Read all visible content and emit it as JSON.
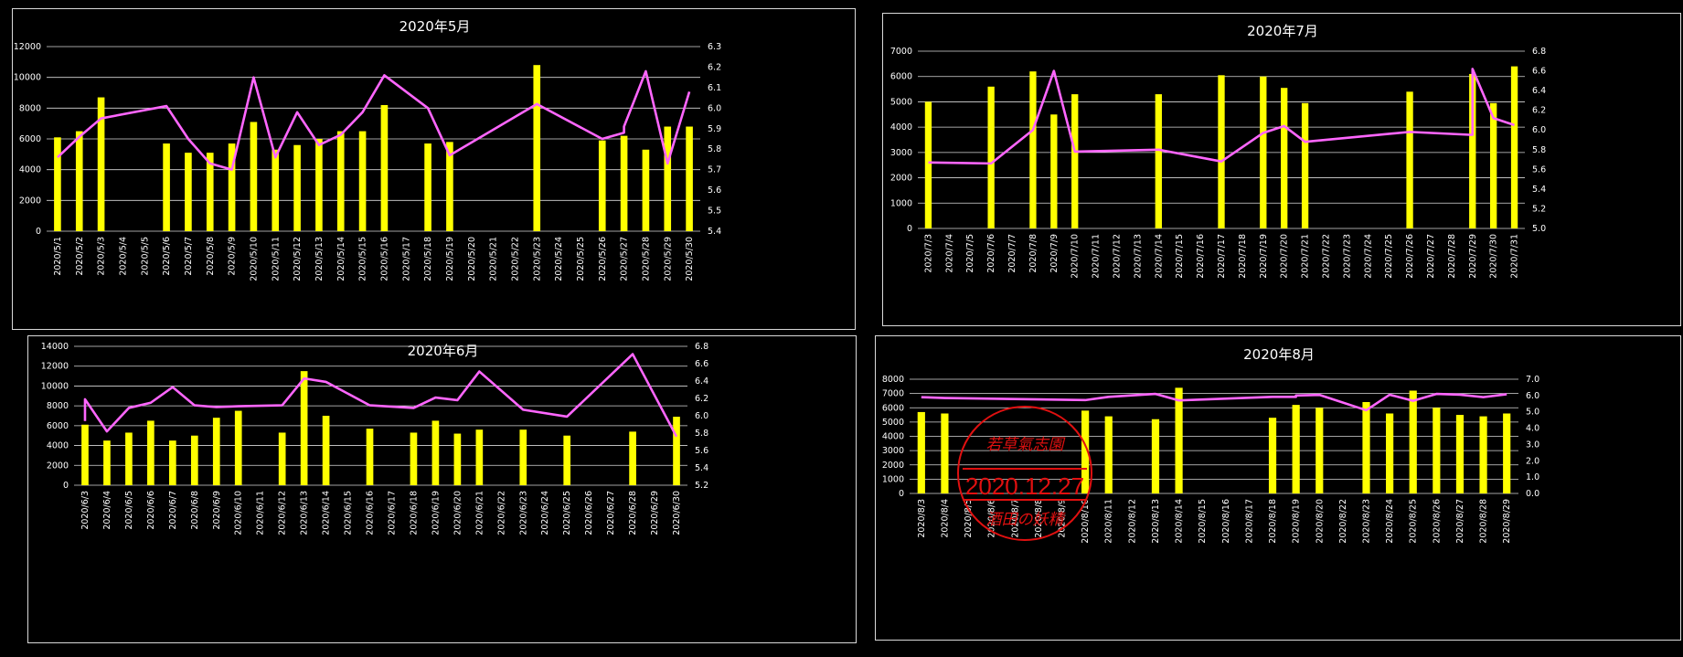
{
  "chart_data": [
    {
      "id": "may",
      "type": "bar+line",
      "title": "2020年5月",
      "categories": [
        "2020/5/1",
        "2020/5/2",
        "2020/5/3",
        "2020/5/4",
        "2020/5/5",
        "2020/5/6",
        "2020/5/7",
        "2020/5/8",
        "2020/5/9",
        "2020/5/10",
        "2020/5/11",
        "2020/5/12",
        "2020/5/13",
        "2020/5/14",
        "2020/5/15",
        "2020/5/16",
        "2020/5/17",
        "2020/5/18",
        "2020/5/19",
        "2020/5/20",
        "2020/5/21",
        "2020/5/22",
        "2020/5/23",
        "2020/5/24",
        "2020/5/25",
        "2020/5/26",
        "2020/5/27",
        "2020/5/28",
        "2020/5/29",
        "2020/5/30"
      ],
      "bars": [
        6100,
        6500,
        8700,
        null,
        null,
        5700,
        5100,
        5100,
        5700,
        7100,
        5300,
        5600,
        6000,
        6500,
        6500,
        8200,
        null,
        5700,
        5800,
        null,
        null,
        null,
        10800,
        null,
        null,
        5900,
        6200,
        5300,
        6800,
        6800
      ],
      "line": [
        5.76,
        5.86,
        5.95,
        null,
        null,
        6.01,
        5.85,
        5.73,
        5.7,
        6.15,
        5.76,
        5.98,
        5.82,
        5.87,
        5.98,
        6.16,
        null,
        6.0,
        5.77,
        null,
        null,
        null,
        6.02,
        null,
        null,
        5.85,
        [
          5.88,
          5.91
        ],
        6.18,
        5.73,
        6.08
      ],
      "yleft": {
        "min": 0,
        "max": 12000,
        "ticks": [
          "0",
          "2000",
          "4000",
          "6000",
          "8000",
          "10000",
          "12000"
        ]
      },
      "yright": {
        "min": 5.4,
        "max": 6.3,
        "ticks": [
          "5.4",
          "5.5",
          "5.6",
          "5.7",
          "5.8",
          "5.9",
          "6.0",
          "6.1",
          "6.2",
          "6.3"
        ]
      },
      "grid": true
    },
    {
      "id": "jul",
      "type": "bar+line",
      "title": "2020年7月",
      "categories": [
        "2020/7/3",
        "2020/7/4",
        "2020/7/5",
        "2020/7/6",
        "2020/7/7",
        "2020/7/8",
        "2020/7/9",
        "2020/7/10",
        "2020/7/11",
        "2020/7/12",
        "2020/7/13",
        "2020/7/14",
        "2020/7/15",
        "2020/7/16",
        "2020/7/17",
        "2020/7/18",
        "2020/7/19",
        "2020/7/20",
        "2020/7/21",
        "2020/7/22",
        "2020/7/23",
        "2020/7/24",
        "2020/7/25",
        "2020/7/26",
        "2020/7/27",
        "2020/7/28",
        "2020/7/29",
        "2020/7/30",
        "2020/7/31"
      ],
      "bars": [
        5000,
        null,
        null,
        5600,
        null,
        6200,
        4500,
        5300,
        null,
        null,
        null,
        5300,
        null,
        null,
        6050,
        null,
        6000,
        5550,
        4950,
        null,
        null,
        null,
        null,
        5400,
        null,
        null,
        6100,
        4950,
        6400
      ],
      "line": [
        5.67,
        null,
        null,
        5.66,
        null,
        6.0,
        6.6,
        5.78,
        null,
        null,
        null,
        5.8,
        null,
        null,
        5.68,
        null,
        5.97,
        [
          6.04,
          6.04
        ],
        5.88,
        null,
        null,
        null,
        null,
        5.98,
        null,
        null,
        [
          5.95,
          6.62
        ],
        6.12,
        6.05
      ],
      "yleft": {
        "min": 0,
        "max": 7000,
        "ticks": [
          "0",
          "1000",
          "2000",
          "3000",
          "4000",
          "5000",
          "6000",
          "7000"
        ]
      },
      "yright": {
        "min": 5.0,
        "max": 6.8,
        "ticks": [
          "5.0",
          "5.2",
          "5.4",
          "5.6",
          "5.8",
          "6.0",
          "6.2",
          "6.4",
          "6.6",
          "6.8"
        ]
      },
      "grid": true
    },
    {
      "id": "jun",
      "type": "bar+line",
      "title": "2020年6月",
      "categories": [
        "2020/6/3",
        "2020/6/4",
        "2020/6/5",
        "2020/6/6",
        "2020/6/7",
        "2020/6/8",
        "2020/6/9",
        "2020/6/10",
        "2020/6/11",
        "2020/6/12",
        "2020/6/13",
        "2020/6/14",
        "2020/6/15",
        "2020/6/16",
        "2020/6/17",
        "2020/6/18",
        "2020/6/19",
        "2020/6/20",
        "2020/6/21",
        "2020/6/22",
        "2020/6/23",
        "2020/6/24",
        "2020/6/25",
        "2020/6/26",
        "2020/6/27",
        "2020/6/28",
        "2020/6/29",
        "2020/6/30"
      ],
      "bars": [
        6100,
        4500,
        5300,
        6500,
        4500,
        5000,
        6800,
        7500,
        null,
        5300,
        11500,
        7000,
        null,
        5700,
        null,
        5300,
        6500,
        5200,
        5600,
        null,
        5600,
        null,
        5000,
        null,
        null,
        5400,
        null,
        6900
      ],
      "line": [
        [
          5.94,
          6.19
        ],
        5.82,
        6.09,
        6.15,
        6.33,
        6.12,
        6.1,
        6.11,
        null,
        6.12,
        6.43,
        6.39,
        null,
        6.12,
        null,
        6.09,
        6.21,
        6.18,
        6.51,
        null,
        6.07,
        null,
        5.99,
        null,
        null,
        6.71,
        null,
        5.76
      ],
      "yleft": {
        "min": 0,
        "max": 14000,
        "ticks": [
          "0",
          "2000",
          "4000",
          "6000",
          "8000",
          "10000",
          "12000",
          "14000"
        ]
      },
      "yright": {
        "min": 5.2,
        "max": 6.8,
        "ticks": [
          "5.2",
          "5.4",
          "5.6",
          "5.8",
          "6.0",
          "6.2",
          "6.4",
          "6.6",
          "6.8"
        ]
      },
      "grid": true
    },
    {
      "id": "aug",
      "type": "bar+line",
      "title": "2020年8月",
      "categories": [
        "2020/8/3",
        "2020/8/4",
        "2020/8/5",
        "2020/8/6",
        "2020/8/7",
        "2020/8/8",
        "2020/8/9",
        "2020/8/10",
        "2020/8/11",
        "2020/8/12",
        "2020/8/13",
        "2020/8/14",
        "2020/8/15",
        "2020/8/16",
        "2020/8/17",
        "2020/8/18",
        "2020/8/19",
        "2020/8/20",
        "2020/8/22",
        "2020/8/23",
        "2020/8/24",
        "2020/8/25",
        "2020/8/26",
        "2020/8/27",
        "2020/8/28",
        "2020/8/29"
      ],
      "bars": [
        5700,
        5600,
        null,
        null,
        null,
        null,
        null,
        5800,
        5400,
        null,
        5200,
        7400,
        null,
        null,
        null,
        5300,
        6200,
        6000,
        null,
        6400,
        5600,
        7200,
        6000,
        5500,
        5400,
        5600
      ],
      "line": [
        5.9,
        5.85,
        null,
        null,
        null,
        null,
        null,
        5.72,
        5.92,
        null,
        6.1,
        5.7,
        null,
        null,
        null,
        5.92,
        [
          5.92,
          6.0
        ],
        6.04,
        null,
        5.1,
        6.05,
        5.68,
        6.1,
        6.05,
        5.9,
        6.08
      ],
      "yleft": {
        "min": 0,
        "max": 8000,
        "ticks": [
          "0",
          "1000",
          "2000",
          "3000",
          "4000",
          "5000",
          "6000",
          "7000",
          "8000"
        ]
      },
      "yright": {
        "min": 0.0,
        "max": 7.0,
        "ticks": [
          "0.0",
          "1.0",
          "2.0",
          "3.0",
          "4.0",
          "5.0",
          "6.0",
          "7.0"
        ]
      },
      "grid": true
    }
  ],
  "colors": {
    "bar": "#ffff00",
    "line": "#ff66ff",
    "grid": "#d9d9d9",
    "text": "#ffffff",
    "stamp": "#e01010"
  },
  "stamp": {
    "top": "若草氣志園",
    "date": "2020.12.27",
    "bottom": "酒田の妖精"
  }
}
